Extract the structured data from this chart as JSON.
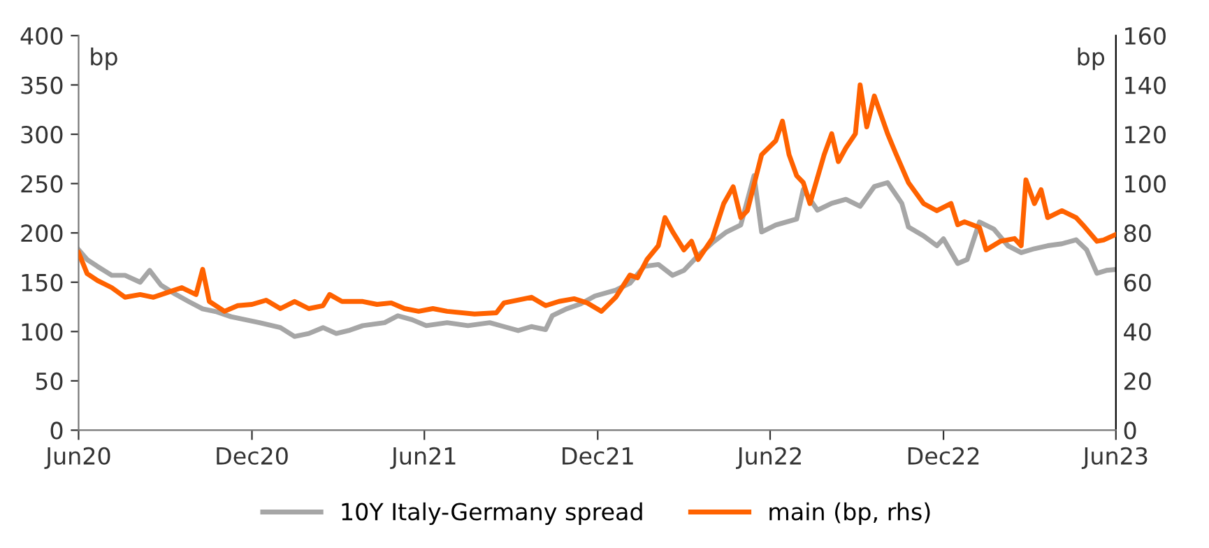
{
  "chart_data": {
    "type": "line",
    "ylabel": "bp",
    "y2label": "bp",
    "xlim": [
      "2020-06-01",
      "2023-06-01"
    ],
    "xticks": [
      {
        "value": "2020-06-01",
        "label": "Jun20"
      },
      {
        "value": "2020-12-01",
        "label": "Dec20"
      },
      {
        "value": "2021-06-01",
        "label": "Jun21"
      },
      {
        "value": "2021-12-01",
        "label": "Dec21"
      },
      {
        "value": "2022-06-01",
        "label": "Jun22"
      },
      {
        "value": "2022-12-01",
        "label": "Dec22"
      },
      {
        "value": "2023-06-01",
        "label": "Jun23"
      }
    ],
    "ylim": [
      0,
      400
    ],
    "yticks": [
      0,
      50,
      100,
      150,
      200,
      250,
      300,
      350,
      400
    ],
    "y2lim": [
      0,
      160
    ],
    "y2ticks": [
      0,
      20,
      40,
      60,
      80,
      100,
      120,
      140,
      160
    ],
    "grid": false,
    "legend": "bottom",
    "marker": "none",
    "line_style": "solid",
    "series": [
      {
        "name": "10Y Italy-Germany spread",
        "color": "#a6a6a6",
        "x": [
          "2020-06-01",
          "2020-06-10",
          "2020-06-21",
          "2020-07-06",
          "2020-07-20",
          "2020-08-05",
          "2020-08-15",
          "2020-08-27",
          "2020-09-11",
          "2020-09-26",
          "2020-10-10",
          "2020-10-25",
          "2020-11-09",
          "2020-11-24",
          "2020-12-09",
          "2020-12-31",
          "2021-01-15",
          "2021-01-30",
          "2021-02-14",
          "2021-02-28",
          "2021-03-13",
          "2021-03-28",
          "2021-04-20",
          "2021-05-04",
          "2021-05-19",
          "2021-06-03",
          "2021-06-25",
          "2021-07-17",
          "2021-08-09",
          "2021-08-24",
          "2021-09-08",
          "2021-09-22",
          "2021-10-07",
          "2021-10-14",
          "2021-10-29",
          "2021-11-13",
          "2021-11-28",
          "2021-12-20",
          "2022-01-04",
          "2022-01-19",
          "2022-02-03",
          "2022-02-18",
          "2022-03-02",
          "2022-03-17",
          "2022-04-01",
          "2022-04-16",
          "2022-05-01",
          "2022-05-15",
          "2022-05-23",
          "2022-06-07",
          "2022-06-29",
          "2022-07-06",
          "2022-07-21",
          "2022-08-05",
          "2022-08-20",
          "2022-09-04",
          "2022-09-19",
          "2022-10-03",
          "2022-10-18",
          "2022-10-25",
          "2022-11-10",
          "2022-11-24",
          "2022-12-01",
          "2022-12-16",
          "2022-12-26",
          "2023-01-08",
          "2023-01-23",
          "2023-02-07",
          "2023-02-21",
          "2023-03-07",
          "2023-03-21",
          "2023-04-05",
          "2023-04-20",
          "2023-05-01",
          "2023-05-12",
          "2023-05-22",
          "2023-06-01"
        ],
        "values": [
          183,
          173,
          166,
          157,
          157,
          150,
          162,
          147,
          138,
          130,
          123,
          120,
          115,
          112,
          109,
          104,
          95,
          98,
          104,
          98,
          101,
          106,
          109,
          116,
          112,
          106,
          109,
          106,
          109,
          105,
          101,
          105,
          102,
          116,
          123,
          128,
          136,
          142,
          149,
          166,
          168,
          157,
          162,
          177,
          190,
          201,
          208,
          258,
          201,
          208,
          214,
          244,
          223,
          230,
          234,
          227,
          247,
          251,
          230,
          206,
          197,
          187,
          194,
          169,
          173,
          211,
          204,
          187,
          180,
          184,
          187,
          189,
          193,
          183,
          159,
          162,
          163
        ]
      },
      {
        "name": "main (bp, rhs)",
        "color": "#ff6200",
        "axis": "y2",
        "x": [
          "2020-06-01",
          "2020-06-10",
          "2020-06-21",
          "2020-07-06",
          "2020-07-20",
          "2020-08-05",
          "2020-08-19",
          "2020-09-04",
          "2020-09-18",
          "2020-10-03",
          "2020-10-10",
          "2020-10-17",
          "2020-11-02",
          "2020-11-16",
          "2020-12-01",
          "2020-12-16",
          "2020-12-31",
          "2021-01-15",
          "2021-01-30",
          "2021-02-14",
          "2021-02-21",
          "2021-03-06",
          "2021-03-28",
          "2021-04-12",
          "2021-04-27",
          "2021-05-11",
          "2021-05-26",
          "2021-06-10",
          "2021-06-25",
          "2021-07-24",
          "2021-08-16",
          "2021-08-24",
          "2021-09-22",
          "2021-10-07",
          "2021-10-21",
          "2021-11-06",
          "2021-11-20",
          "2021-12-05",
          "2021-12-20",
          "2022-01-04",
          "2022-01-12",
          "2022-01-22",
          "2022-02-03",
          "2022-02-10",
          "2022-02-18",
          "2022-03-02",
          "2022-03-10",
          "2022-03-17",
          "2022-04-01",
          "2022-04-13",
          "2022-04-23",
          "2022-05-01",
          "2022-05-08",
          "2022-05-23",
          "2022-06-07",
          "2022-06-14",
          "2022-06-21",
          "2022-06-29",
          "2022-07-06",
          "2022-07-13",
          "2022-07-28",
          "2022-08-05",
          "2022-08-12",
          "2022-08-20",
          "2022-08-30",
          "2022-09-04",
          "2022-09-11",
          "2022-09-19",
          "2022-10-03",
          "2022-10-11",
          "2022-10-25",
          "2022-11-10",
          "2022-11-24",
          "2022-12-09",
          "2022-12-16",
          "2022-12-23",
          "2023-01-08",
          "2023-01-15",
          "2023-01-30",
          "2023-02-14",
          "2023-02-21",
          "2023-02-26",
          "2023-03-07",
          "2023-03-14",
          "2023-03-21",
          "2023-04-05",
          "2023-04-20",
          "2023-04-27",
          "2023-05-12",
          "2023-05-19",
          "2023-06-01"
        ],
        "values": [
          72,
          63.5,
          60.7,
          57.8,
          53.9,
          55,
          53.9,
          56,
          57.8,
          55,
          65.2,
          52.2,
          48.2,
          50.5,
          51,
          52.7,
          49.3,
          52.2,
          49.3,
          50.5,
          55,
          52.2,
          52.2,
          51,
          51.6,
          49.3,
          48.2,
          49.3,
          48.2,
          47.1,
          47.6,
          51.6,
          53.9,
          50.5,
          52.2,
          53.3,
          51.6,
          48.2,
          53.9,
          62.9,
          61.8,
          69.2,
          74.8,
          86.2,
          80.5,
          73.1,
          76.6,
          69.2,
          77.7,
          91.9,
          98.7,
          86.2,
          89,
          111.7,
          117.4,
          125.3,
          111.7,
          103.2,
          100.4,
          91.9,
          111.7,
          120.2,
          108.9,
          114.5,
          120.2,
          140,
          123,
          135.5,
          120.2,
          112.8,
          100.4,
          91.9,
          89,
          91.9,
          83.3,
          84.5,
          82.2,
          73.1,
          76.6,
          77.7,
          74.8,
          101.5,
          91.9,
          97.5,
          86.2,
          89,
          86.2,
          83.3,
          76.6,
          77.1,
          79.4
        ]
      }
    ]
  }
}
